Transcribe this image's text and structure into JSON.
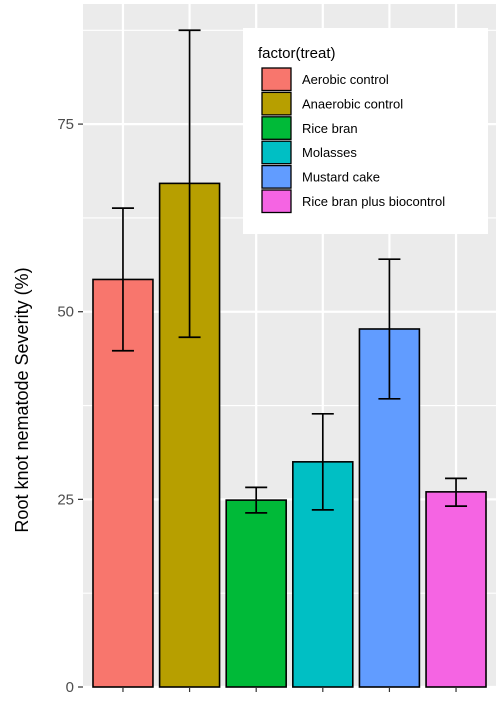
{
  "chart_data": {
    "type": "bar",
    "ylabel": "Root knot nematode Severity (%)",
    "xlabel": "",
    "ylim": [
      0,
      91
    ],
    "yticks": [
      0,
      25,
      50,
      75
    ],
    "grid": true,
    "legend": {
      "title": "factor(treat)",
      "position": "top-right"
    },
    "series": [
      {
        "name": "Aerobic control",
        "value": 54.3,
        "err_low": 44.8,
        "err_high": 63.8,
        "color": "#F8766D"
      },
      {
        "name": "Anaerobic control",
        "value": 67.1,
        "err_low": 46.6,
        "err_high": 87.5,
        "color": "#B79F00"
      },
      {
        "name": "Rice bran",
        "value": 24.9,
        "err_low": 23.2,
        "err_high": 26.6,
        "color": "#00BA38"
      },
      {
        "name": "Molasses",
        "value": 30.0,
        "err_low": 23.6,
        "err_high": 36.4,
        "color": "#00BFC4"
      },
      {
        "name": "Mustard cake",
        "value": 47.7,
        "err_low": 38.4,
        "err_high": 57.0,
        "color": "#619CFF"
      },
      {
        "name": "Rice bran plus biocontrol",
        "value": 26.0,
        "err_low": 24.1,
        "err_high": 27.8,
        "color": "#F564E3"
      }
    ],
    "colors": {
      "panel_background": "#EBEBEB",
      "grid_line": "#FFFFFF",
      "bar_outline": "#000000"
    }
  }
}
